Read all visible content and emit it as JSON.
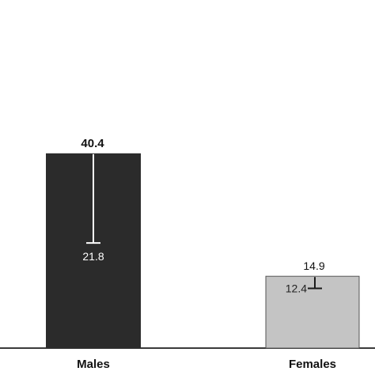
{
  "chart_data": {
    "type": "bar",
    "categories": [
      "Males",
      "Females"
    ],
    "series": [
      {
        "values": [
          40.4,
          14.9
        ],
        "lower_values": [
          21.8,
          12.4
        ]
      }
    ],
    "value_labels": [
      "40.4",
      "14.9"
    ],
    "lower_labels": [
      "21.8",
      "12.4"
    ],
    "ylim": [
      0,
      64
    ],
    "grid": false,
    "legend": "none"
  },
  "colors": {
    "bar_males": "#2b2b2b",
    "bar_females": "#c4c4c4",
    "axis": "#3a3a3a",
    "whisker_on_dark": "#ffffff",
    "whisker_on_light": "#1a1a1a"
  }
}
